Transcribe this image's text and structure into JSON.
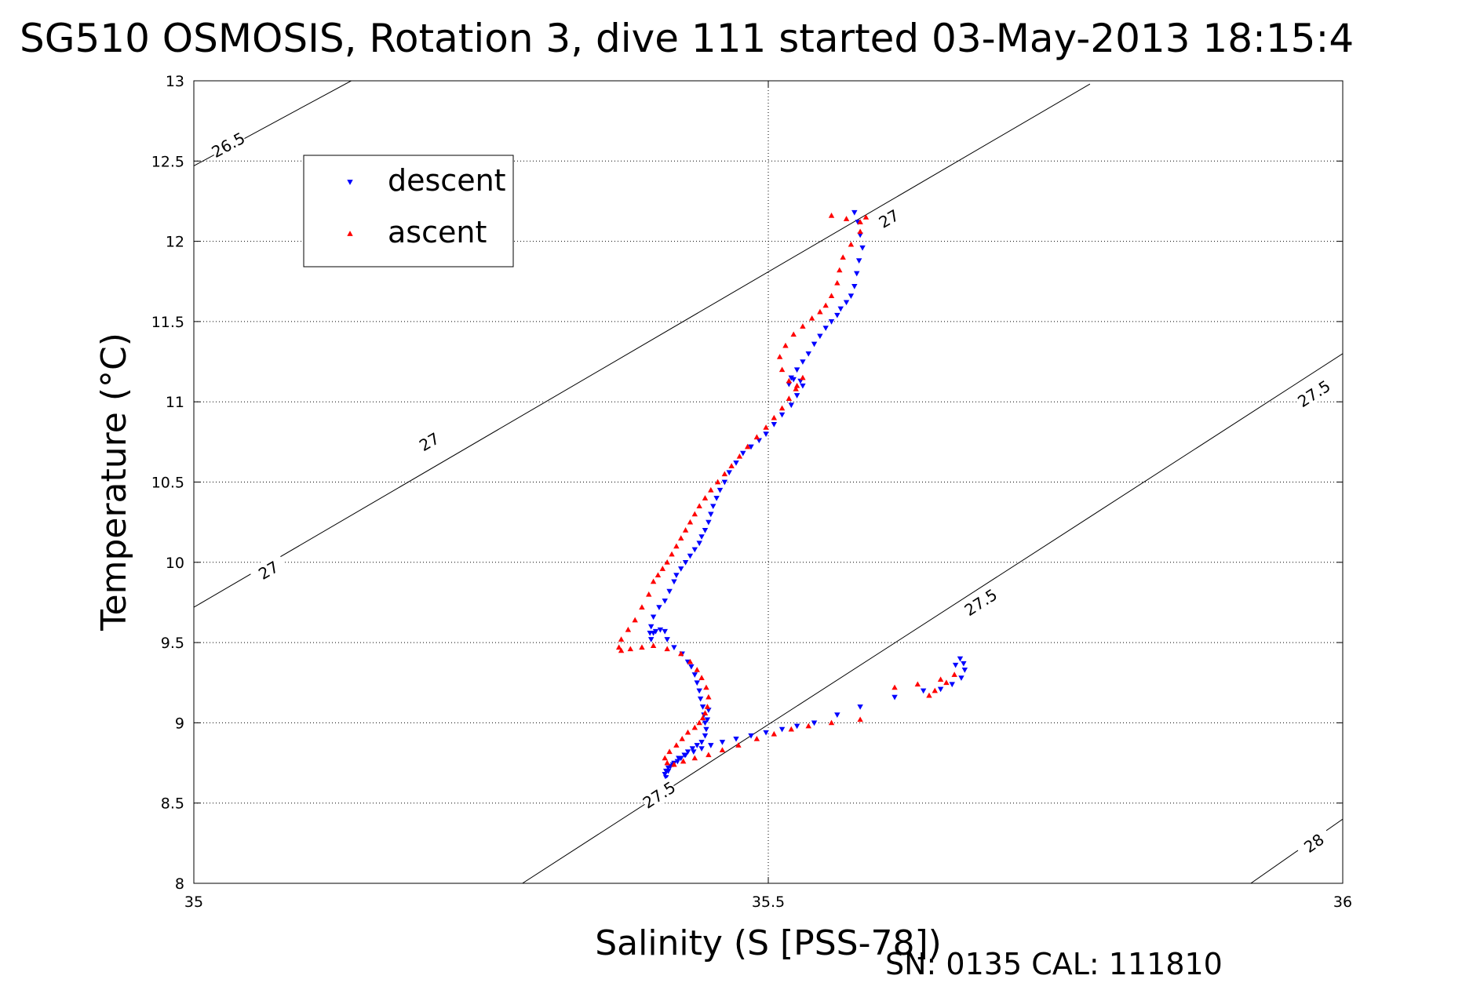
{
  "chart_data": {
    "type": "scatter",
    "title": "SG510 OSMOSIS, Rotation 3, dive 111 started 03-May-2013 18:15:4",
    "xlabel": "Salinity (S [PSS-78])",
    "ylabel": "Temperature (°C)",
    "footer": "SN: 0135  CAL: 111810",
    "xlim": [
      35,
      36
    ],
    "ylim": [
      8,
      13
    ],
    "x_ticks": [
      "35",
      "35.5",
      "36"
    ],
    "y_ticks": [
      "8",
      "8.5",
      "9",
      "9.5",
      "10",
      "10.5",
      "11",
      "11.5",
      "12",
      "12.5",
      "13"
    ],
    "grid": true,
    "legend_position": "top-left",
    "density_contours": [
      {
        "level": 26.5,
        "label": "26.5",
        "points": [
          [
            35.0,
            12.47
          ],
          [
            35.137,
            13.0
          ]
        ]
      },
      {
        "level": 27,
        "label": "27",
        "points": [
          [
            35.0,
            9.72
          ],
          [
            35.78,
            12.98
          ]
        ]
      },
      {
        "level": 27.5,
        "label": "27.5",
        "points": [
          [
            35.286,
            8.0
          ],
          [
            36.0,
            11.3
          ]
        ]
      },
      {
        "level": 28,
        "label": "28",
        "points": [
          [
            35.92,
            8.0
          ],
          [
            36.0,
            8.4
          ]
        ]
      }
    ],
    "contour_labels": [
      {
        "label": "26.5",
        "x": 35.03,
        "y": 12.6
      },
      {
        "label": "27",
        "x": 35.605,
        "y": 12.14
      },
      {
        "label": "27",
        "x": 35.205,
        "y": 10.75
      },
      {
        "label": "27",
        "x": 35.065,
        "y": 9.95
      },
      {
        "label": "27.5",
        "x": 35.975,
        "y": 11.05
      },
      {
        "label": "27.5",
        "x": 35.685,
        "y": 9.75
      },
      {
        "label": "27.5",
        "x": 35.405,
        "y": 8.55
      },
      {
        "label": "28",
        "x": 35.975,
        "y": 8.25
      }
    ],
    "series": [
      {
        "name": "descent",
        "color": "#0000ff",
        "marker": "triangle-down",
        "x": [
          35.575,
          35.578,
          35.58,
          35.582,
          35.579,
          35.577,
          35.575,
          35.572,
          35.568,
          35.563,
          35.56,
          35.555,
          35.55,
          35.545,
          35.54,
          35.535,
          35.53,
          35.525,
          35.52,
          35.518,
          35.522,
          35.528,
          35.53,
          35.525,
          35.52,
          35.512,
          35.505,
          35.498,
          35.492,
          35.485,
          35.478,
          35.472,
          35.466,
          35.462,
          35.458,
          35.455,
          35.452,
          35.45,
          35.448,
          35.445,
          35.442,
          35.44,
          35.436,
          35.432,
          35.428,
          35.424,
          35.42,
          35.418,
          35.414,
          35.41,
          35.405,
          35.4,
          35.398,
          35.397,
          35.398,
          35.4,
          35.402,
          35.406,
          35.41,
          35.412,
          35.418,
          35.425,
          35.43,
          35.433,
          35.436,
          35.438,
          35.44,
          35.441,
          35.443,
          35.444,
          35.445,
          35.446,
          35.447,
          35.448,
          35.445,
          35.442,
          35.438,
          35.434,
          35.43,
          35.427,
          35.424,
          35.421,
          35.418,
          35.415,
          35.413,
          35.411,
          35.41,
          35.411,
          35.413,
          35.417,
          35.422,
          35.428,
          35.435,
          35.442,
          35.45,
          35.46,
          35.472,
          35.485,
          35.498,
          35.512,
          35.525,
          35.54,
          35.56,
          35.58,
          35.61,
          35.635,
          35.65,
          35.66,
          35.668,
          35.671,
          35.67,
          35.667,
          35.663
        ],
        "y": [
          12.18,
          12.12,
          12.04,
          11.96,
          11.88,
          11.8,
          11.72,
          11.66,
          11.62,
          11.58,
          11.54,
          11.5,
          11.46,
          11.41,
          11.36,
          11.3,
          11.25,
          11.2,
          11.15,
          11.11,
          11.14,
          11.13,
          11.1,
          11.04,
          10.98,
          10.92,
          10.86,
          10.8,
          10.76,
          10.72,
          10.68,
          10.62,
          10.56,
          10.5,
          10.45,
          10.4,
          10.35,
          10.3,
          10.25,
          10.2,
          10.16,
          10.12,
          10.08,
          10.04,
          10.0,
          9.96,
          9.92,
          9.88,
          9.82,
          9.76,
          9.72,
          9.66,
          9.6,
          9.56,
          9.52,
          9.56,
          9.57,
          9.58,
          9.57,
          9.52,
          9.47,
          9.43,
          9.38,
          9.35,
          9.3,
          9.25,
          9.2,
          9.15,
          9.1,
          9.05,
          9.0,
          8.96,
          9.02,
          9.08,
          8.92,
          8.88,
          8.86,
          8.84,
          8.82,
          8.8,
          8.78,
          8.76,
          8.75,
          8.73,
          8.72,
          8.7,
          8.68,
          8.66,
          8.7,
          8.74,
          8.78,
          8.8,
          8.82,
          8.84,
          8.86,
          8.88,
          8.9,
          8.92,
          8.94,
          8.96,
          8.98,
          9.0,
          9.05,
          9.1,
          9.16,
          9.2,
          9.21,
          9.24,
          9.28,
          9.33,
          9.37,
          9.4,
          9.36
        ]
      },
      {
        "name": "ascent",
        "color": "#ff0000",
        "marker": "triangle-up",
        "x": [
          35.555,
          35.568,
          35.58,
          35.585,
          35.58,
          35.572,
          35.565,
          35.562,
          35.56,
          35.555,
          35.55,
          35.545,
          35.538,
          35.53,
          35.522,
          35.515,
          35.51,
          35.512,
          35.518,
          35.525,
          35.53,
          35.524,
          35.518,
          35.512,
          35.505,
          35.498,
          35.49,
          35.482,
          35.475,
          35.468,
          35.462,
          35.456,
          35.45,
          35.445,
          35.44,
          35.436,
          35.432,
          35.428,
          35.424,
          35.42,
          35.416,
          35.412,
          35.408,
          35.404,
          35.4,
          35.396,
          35.39,
          35.384,
          35.378,
          35.372,
          35.37,
          35.372,
          35.38,
          35.39,
          35.4,
          35.412,
          35.424,
          35.432,
          35.438,
          35.442,
          35.446,
          35.448,
          35.447,
          35.445,
          35.443,
          35.44,
          35.436,
          35.43,
          35.425,
          35.42,
          35.414,
          35.41,
          35.412,
          35.418,
          35.426,
          35.436,
          35.448,
          35.46,
          35.474,
          35.49,
          35.505,
          35.52,
          35.535,
          35.555,
          35.58,
          35.64,
          35.645,
          35.655,
          35.662,
          35.65,
          35.63,
          35.61
        ],
        "y": [
          12.16,
          12.14,
          12.12,
          12.15,
          12.06,
          11.98,
          11.9,
          11.82,
          11.74,
          11.66,
          11.6,
          11.56,
          11.52,
          11.47,
          11.42,
          11.35,
          11.28,
          11.2,
          11.13,
          11.1,
          11.15,
          11.08,
          11.02,
          10.96,
          10.9,
          10.84,
          10.78,
          10.72,
          10.66,
          10.6,
          10.55,
          10.5,
          10.45,
          10.4,
          10.35,
          10.3,
          10.25,
          10.2,
          10.15,
          10.1,
          10.05,
          10.0,
          9.96,
          9.92,
          9.88,
          9.8,
          9.72,
          9.64,
          9.58,
          9.52,
          9.47,
          9.45,
          9.46,
          9.47,
          9.48,
          9.46,
          9.43,
          9.38,
          9.33,
          9.28,
          9.22,
          9.16,
          9.1,
          9.06,
          9.03,
          9.0,
          8.97,
          8.94,
          8.9,
          8.86,
          8.82,
          8.78,
          8.75,
          8.74,
          8.76,
          8.78,
          8.8,
          8.83,
          8.86,
          8.9,
          8.93,
          8.96,
          8.98,
          9.0,
          9.02,
          9.17,
          9.2,
          9.25,
          9.3,
          9.27,
          9.24,
          9.22
        ]
      }
    ]
  }
}
